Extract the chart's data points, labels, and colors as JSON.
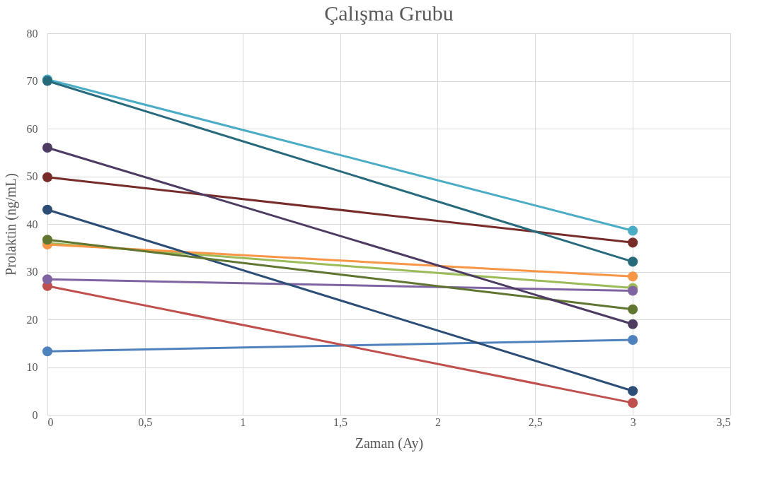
{
  "chart_data": {
    "type": "line",
    "title": "Çalışma Grubu",
    "xlabel": "Zaman (Ay)",
    "ylabel": "Prolaktin (ng/mL)",
    "x": [
      0,
      3
    ],
    "series": [
      {
        "color": "#4f81bd",
        "values": [
          13.3,
          15.7
        ]
      },
      {
        "color": "#c0504d",
        "values": [
          27,
          2.5
        ]
      },
      {
        "color": "#9bbb59",
        "values": [
          36,
          26.6
        ]
      },
      {
        "color": "#8064a2",
        "values": [
          28.4,
          26
        ]
      },
      {
        "color": "#4bacc6",
        "values": [
          70.3,
          38.6
        ]
      },
      {
        "color": "#f79646",
        "values": [
          35.7,
          29
        ]
      },
      {
        "color": "#2c4d75",
        "values": [
          43,
          5
        ]
      },
      {
        "color": "#772c2a",
        "values": [
          49.8,
          36.1
        ]
      },
      {
        "color": "#5f7530",
        "values": [
          36.7,
          22.1
        ]
      },
      {
        "color": "#4d3b62",
        "values": [
          56,
          19
        ]
      },
      {
        "color": "#276a7c",
        "values": [
          70,
          32.1
        ]
      }
    ],
    "xlim": [
      0,
      3.5
    ],
    "xticks": [
      0,
      {
        "value": 0.5,
        "label": "0,5"
      },
      1,
      {
        "value": 1.5,
        "label": "1,5"
      },
      2,
      {
        "value": 2.5,
        "label": "2,5"
      },
      3,
      {
        "value": 3.5,
        "label": "3,5"
      }
    ],
    "ylim": [
      0,
      80
    ],
    "yticks": [
      0,
      10,
      20,
      30,
      40,
      50,
      60,
      70,
      80
    ],
    "grid": true,
    "legend": false,
    "marker": "circle",
    "line_style": "solid"
  }
}
